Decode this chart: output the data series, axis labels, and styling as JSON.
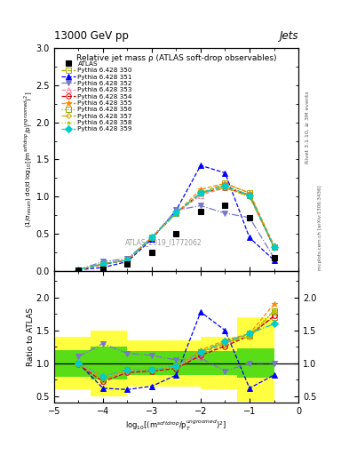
{
  "title_main": "13000 GeV pp",
  "title_right": "Jets",
  "plot_title": "Relative jet mass ρ (ATLAS soft-drop observables)",
  "ylabel_main": "(1/σ$_{resum}$) dσ/d log$_{10}$[(m$^{soft drop}$/p$_T^{ungroomed}$)$^2$]",
  "ylabel_ratio": "Ratio to ATLAS",
  "xlabel": "log$_{10}$[(m$^{soft drop}$/p$_T^{ungroomed}$)$^2$]",
  "watermark": "ATLAS_2019_I1772062",
  "rivet_text": "Rivet 3.1.10, ≥ 3M events",
  "mcplots_text": "mcplots.cern.ch [arXiv:1306.3436]",
  "xlim": [
    -5.0,
    0.0
  ],
  "ylim_main": [
    0.0,
    3.0
  ],
  "ylim_ratio": [
    0.4,
    2.4
  ],
  "atlas_data": {
    "label": "ATLAS",
    "x": [
      -4.5,
      -4.0,
      -3.5,
      -3.0,
      -2.5,
      -2.0,
      -1.5,
      -1.0,
      -0.5
    ],
    "y": [
      0.02,
      0.03,
      0.1,
      0.25,
      0.5,
      0.8,
      0.88,
      0.72,
      0.18
    ],
    "color": "black",
    "marker": "s"
  },
  "error_band_yellow": {
    "x_edges": [
      -5.0,
      -4.25,
      -3.5,
      -2.75,
      -2.0,
      -1.25,
      -0.5
    ],
    "y_lo": [
      0.6,
      0.5,
      0.65,
      0.65,
      0.6,
      0.42,
      0.42
    ],
    "y_hi": [
      1.4,
      1.5,
      1.35,
      1.35,
      1.4,
      1.7,
      2.2
    ],
    "color": "#ffff00",
    "alpha": 0.75
  },
  "error_band_green": {
    "x_edges": [
      -5.0,
      -4.25,
      -3.5,
      -2.75,
      -2.0,
      -1.25,
      -0.5
    ],
    "y_lo": [
      0.8,
      0.75,
      0.82,
      0.82,
      0.82,
      0.78,
      0.78
    ],
    "y_hi": [
      1.2,
      1.25,
      1.18,
      1.18,
      1.18,
      1.22,
      1.22
    ],
    "color": "#00cc00",
    "alpha": 0.65
  },
  "series": [
    {
      "label": "Pythia 6.428 350",
      "x": [
        -4.5,
        -4.0,
        -3.5,
        -3.0,
        -2.5,
        -2.0,
        -1.5,
        -1.0,
        -0.5
      ],
      "y": [
        0.02,
        0.1,
        0.15,
        0.45,
        0.78,
        1.05,
        1.18,
        1.05,
        0.32
      ],
      "color": "#aaaa00",
      "linestyle": "--",
      "marker": "s",
      "markerfacecolor": "none",
      "markersize": 4
    },
    {
      "label": "Pythia 6.428 351",
      "x": [
        -4.5,
        -4.0,
        -3.5,
        -3.0,
        -2.5,
        -2.0,
        -1.5,
        -1.0,
        -0.5
      ],
      "y": [
        0.02,
        0.05,
        0.13,
        0.43,
        0.82,
        1.42,
        1.32,
        0.45,
        0.15
      ],
      "color": "#0000ff",
      "linestyle": "--",
      "marker": "^",
      "markerfacecolor": "#0000ff",
      "markersize": 4
    },
    {
      "label": "Pythia 6.428 352",
      "x": [
        -4.5,
        -4.0,
        -3.5,
        -3.0,
        -2.5,
        -2.0,
        -1.5,
        -1.0,
        -0.5
      ],
      "y": [
        0.02,
        0.13,
        0.17,
        0.45,
        0.82,
        0.88,
        0.78,
        0.72,
        0.18
      ],
      "color": "#7777cc",
      "linestyle": "-.",
      "marker": "v",
      "markerfacecolor": "#7777cc",
      "markersize": 4
    },
    {
      "label": "Pythia 6.428 353",
      "x": [
        -4.5,
        -4.0,
        -3.5,
        -3.0,
        -2.5,
        -2.0,
        -1.5,
        -1.0,
        -0.5
      ],
      "y": [
        0.02,
        0.1,
        0.15,
        0.45,
        0.78,
        1.02,
        1.12,
        1.02,
        0.32
      ],
      "color": "#ff88aa",
      "linestyle": "--",
      "marker": "^",
      "markerfacecolor": "none",
      "markersize": 4
    },
    {
      "label": "Pythia 6.428 354",
      "x": [
        -4.5,
        -4.0,
        -3.5,
        -3.0,
        -2.5,
        -2.0,
        -1.5,
        -1.0,
        -0.5
      ],
      "y": [
        0.02,
        0.09,
        0.15,
        0.45,
        0.78,
        1.05,
        1.12,
        1.02,
        0.32
      ],
      "color": "#cc0000",
      "linestyle": "--",
      "marker": "o",
      "markerfacecolor": "none",
      "markersize": 4
    },
    {
      "label": "Pythia 6.428 355",
      "x": [
        -4.5,
        -4.0,
        -3.5,
        -3.0,
        -2.5,
        -2.0,
        -1.5,
        -1.0,
        -0.5
      ],
      "y": [
        0.02,
        0.1,
        0.15,
        0.46,
        0.78,
        1.1,
        1.18,
        1.05,
        0.35
      ],
      "color": "#ff8800",
      "linestyle": "--",
      "marker": "*",
      "markerfacecolor": "#ff8800",
      "markersize": 5
    },
    {
      "label": "Pythia 6.428 356",
      "x": [
        -4.5,
        -4.0,
        -3.5,
        -3.0,
        -2.5,
        -2.0,
        -1.5,
        -1.0,
        -0.5
      ],
      "y": [
        0.02,
        0.1,
        0.15,
        0.46,
        0.78,
        1.05,
        1.15,
        1.02,
        0.33
      ],
      "color": "#88aa00",
      "linestyle": ":",
      "marker": "s",
      "markerfacecolor": "none",
      "markersize": 4
    },
    {
      "label": "Pythia 6.428 357",
      "x": [
        -4.5,
        -4.0,
        -3.5,
        -3.0,
        -2.5,
        -2.0,
        -1.5,
        -1.0,
        -0.5
      ],
      "y": [
        0.02,
        0.1,
        0.15,
        0.45,
        0.78,
        1.05,
        1.12,
        1.0,
        0.33
      ],
      "color": "#ccaa00",
      "linestyle": "-.",
      "marker": "D",
      "markerfacecolor": "none",
      "markersize": 3
    },
    {
      "label": "Pythia 6.428 358",
      "x": [
        -4.5,
        -4.0,
        -3.5,
        -3.0,
        -2.5,
        -2.0,
        -1.5,
        -1.0,
        -0.5
      ],
      "y": [
        0.02,
        0.1,
        0.15,
        0.45,
        0.78,
        1.05,
        1.12,
        1.0,
        0.33
      ],
      "color": "#aacc00",
      "linestyle": ":",
      "marker": ".",
      "markerfacecolor": "#aacc00",
      "markersize": 4
    },
    {
      "label": "Pythia 6.428 359",
      "x": [
        -4.5,
        -4.0,
        -3.5,
        -3.0,
        -2.5,
        -2.0,
        -1.5,
        -1.0,
        -0.5
      ],
      "y": [
        0.02,
        0.1,
        0.15,
        0.46,
        0.79,
        1.05,
        1.15,
        1.02,
        0.33
      ],
      "color": "#00cccc",
      "linestyle": "-.",
      "marker": "D",
      "markerfacecolor": "#00cccc",
      "markersize": 4
    }
  ],
  "ratio_series": [
    {
      "x": [
        -4.5,
        -4.0,
        -3.5,
        -3.0,
        -2.5,
        -2.0,
        -1.5,
        -1.0,
        -0.5
      ],
      "y": [
        1.0,
        0.75,
        0.88,
        0.88,
        0.93,
        1.15,
        1.3,
        1.45,
        1.7
      ],
      "color": "#aaaa00",
      "linestyle": "--",
      "marker": "s",
      "markerfacecolor": "none",
      "markersize": 4
    },
    {
      "x": [
        -4.5,
        -4.0,
        -3.5,
        -3.0,
        -2.5,
        -2.0,
        -1.5,
        -1.0,
        -0.5
      ],
      "y": [
        1.0,
        0.62,
        0.6,
        0.65,
        0.82,
        1.78,
        1.5,
        0.62,
        0.82
      ],
      "color": "#0000ff",
      "linestyle": "--",
      "marker": "^",
      "markerfacecolor": "#0000ff",
      "markersize": 4
    },
    {
      "x": [
        -4.5,
        -4.0,
        -3.5,
        -3.0,
        -2.5,
        -2.0,
        -1.5,
        -1.0,
        -0.5
      ],
      "y": [
        1.1,
        1.3,
        1.15,
        1.12,
        1.05,
        1.08,
        0.88,
        1.0,
        1.0
      ],
      "color": "#7777cc",
      "linestyle": "-.",
      "marker": "v",
      "markerfacecolor": "#7777cc",
      "markersize": 4
    },
    {
      "x": [
        -4.5,
        -4.0,
        -3.5,
        -3.0,
        -2.5,
        -2.0,
        -1.5,
        -1.0,
        -0.5
      ],
      "y": [
        1.0,
        0.72,
        0.88,
        0.9,
        0.95,
        1.12,
        1.28,
        1.42,
        1.72
      ],
      "color": "#ff88aa",
      "linestyle": "--",
      "marker": "^",
      "markerfacecolor": "none",
      "markersize": 4
    },
    {
      "x": [
        -4.5,
        -4.0,
        -3.5,
        -3.0,
        -2.5,
        -2.0,
        -1.5,
        -1.0,
        -0.5
      ],
      "y": [
        0.98,
        0.72,
        0.86,
        0.88,
        0.92,
        1.12,
        1.26,
        1.42,
        1.72
      ],
      "color": "#cc0000",
      "linestyle": "--",
      "marker": "o",
      "markerfacecolor": "none",
      "markersize": 4
    },
    {
      "x": [
        -4.5,
        -4.0,
        -3.5,
        -3.0,
        -2.5,
        -2.0,
        -1.5,
        -1.0,
        -0.5
      ],
      "y": [
        1.0,
        0.8,
        0.9,
        0.9,
        0.95,
        1.2,
        1.35,
        1.45,
        1.9
      ],
      "color": "#ff8800",
      "linestyle": "--",
      "marker": "*",
      "markerfacecolor": "#ff8800",
      "markersize": 5
    },
    {
      "x": [
        -4.5,
        -4.0,
        -3.5,
        -3.0,
        -2.5,
        -2.0,
        -1.5,
        -1.0,
        -0.5
      ],
      "y": [
        1.0,
        0.78,
        0.9,
        0.9,
        0.95,
        1.17,
        1.32,
        1.42,
        1.8
      ],
      "color": "#88aa00",
      "linestyle": ":",
      "marker": "s",
      "markerfacecolor": "none",
      "markersize": 4
    },
    {
      "x": [
        -4.5,
        -4.0,
        -3.5,
        -3.0,
        -2.5,
        -2.0,
        -1.5,
        -1.0,
        -0.5
      ],
      "y": [
        1.0,
        0.78,
        0.9,
        0.9,
        0.95,
        1.17,
        1.32,
        1.4,
        1.8
      ],
      "color": "#ccaa00",
      "linestyle": "-.",
      "marker": "D",
      "markerfacecolor": "none",
      "markersize": 3
    },
    {
      "x": [
        -4.5,
        -4.0,
        -3.5,
        -3.0,
        -2.5,
        -2.0,
        -1.5,
        -1.0,
        -0.5
      ],
      "y": [
        1.0,
        0.78,
        0.9,
        0.9,
        0.96,
        1.17,
        1.32,
        1.42,
        1.8
      ],
      "color": "#aacc00",
      "linestyle": ":",
      "marker": ".",
      "markerfacecolor": "#aacc00",
      "markersize": 4
    },
    {
      "x": [
        -4.5,
        -4.0,
        -3.5,
        -3.0,
        -2.5,
        -2.0,
        -1.5,
        -1.0,
        -0.5
      ],
      "y": [
        1.0,
        0.8,
        0.9,
        0.9,
        0.96,
        1.17,
        1.33,
        1.45,
        1.6
      ],
      "color": "#00cccc",
      "linestyle": "-.",
      "marker": "D",
      "markerfacecolor": "#00cccc",
      "markersize": 4
    }
  ]
}
